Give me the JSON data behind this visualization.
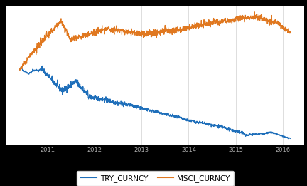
{
  "try_color": "#1f6fba",
  "msci_color": "#e07820",
  "background_color": "#000000",
  "plot_bg_color": "#ffffff",
  "grid_color": "#d0d0d0",
  "legend_labels": [
    "TRY_CURNCY",
    "MSCI_CURNCY"
  ],
  "n_points": 1500,
  "figsize": [
    4.32,
    2.61
  ],
  "dpi": 100,
  "linewidth": 0.8,
  "x_tick_color": "#aaaaaa",
  "legend_fontsize": 7.5
}
